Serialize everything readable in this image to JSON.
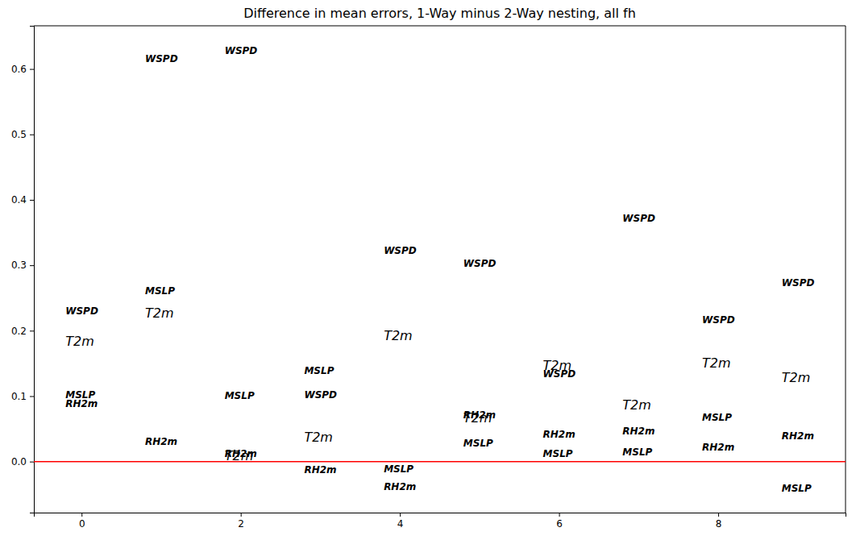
{
  "chart_data": {
    "type": "scatter",
    "title": "Difference in mean errors, 1-Way minus 2-Way nesting, all fh",
    "x": [
      0,
      1,
      2,
      3,
      4,
      5,
      6,
      7,
      8,
      9
    ],
    "series": [
      {
        "name": "WSPD",
        "color": "#000000",
        "marker": "text",
        "values": [
          0.225,
          0.61,
          0.623,
          0.097,
          0.318,
          0.298,
          0.129,
          0.367,
          0.211,
          0.268
        ]
      },
      {
        "name": "T2m",
        "color": "#000000",
        "marker": "large-text",
        "values": [
          0.177,
          0.22,
          0.002,
          0.031,
          0.186,
          0.06,
          0.14,
          0.08,
          0.144,
          0.121
        ]
      },
      {
        "name": "MSLP",
        "color": "#000000",
        "marker": "text",
        "values": [
          0.097,
          0.256,
          0.096,
          0.134,
          -0.017,
          0.023,
          0.007,
          0.009,
          0.063,
          -0.046
        ]
      },
      {
        "name": "RH2m",
        "color": "#000000",
        "marker": "text",
        "values": [
          0.083,
          0.026,
          0.007,
          -0.018,
          -0.044,
          0.066,
          0.037,
          0.042,
          0.017,
          0.034
        ]
      }
    ],
    "reference_line": {
      "value": 0,
      "color": "#ff0000"
    },
    "xlim": [
      -0.6,
      9.6
    ],
    "xticks": [
      0,
      2,
      4,
      6,
      8
    ],
    "ylim": [
      -0.078,
      0.666
    ],
    "yticks": [
      {
        "value": 0,
        "label": "0.0"
      },
      {
        "value": 0.1,
        "label": "0.1"
      },
      {
        "value": 0.2,
        "label": "0.2"
      },
      {
        "value": 0.3,
        "label": "0.3"
      },
      {
        "value": 0.4,
        "label": "0.4"
      },
      {
        "value": 0.5,
        "label": "0.5"
      },
      {
        "value": 0.6,
        "label": "0.6"
      }
    ],
    "grid": false
  }
}
